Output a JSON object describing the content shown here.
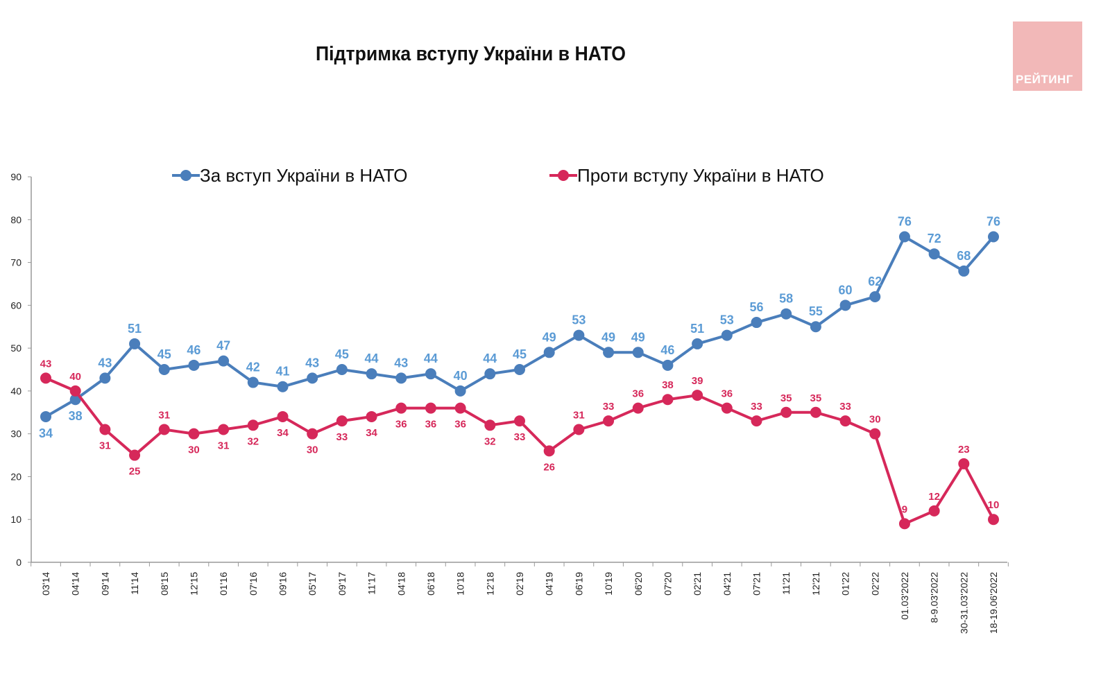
{
  "title": "Підтримка вступу України в НАТО",
  "logo_text": "РЕЙТИНГ",
  "chart_data": {
    "type": "line",
    "title": "Підтримка вступу України в НАТО",
    "xlabel": "",
    "ylabel": "",
    "ylim": [
      0,
      90
    ],
    "yticks": [
      0,
      10,
      20,
      30,
      40,
      50,
      60,
      70,
      80,
      90
    ],
    "grid": false,
    "legend_placement": "top",
    "categories": [
      "03'14",
      "04'14",
      "09'14",
      "11'14",
      "08'15",
      "12'15",
      "01'16",
      "07'16",
      "09'16",
      "05'17",
      "09'17",
      "11'17",
      "04'18",
      "06'18",
      "10'18",
      "12'18",
      "02'19",
      "04'19",
      "06'19",
      "10'19",
      "06'20",
      "07'20",
      "02'21",
      "04'21",
      "07'21",
      "11'21",
      "12'21",
      "01'22",
      "02'22",
      "01.03'2022",
      "8-9.03'2022",
      "30-31.03'2022",
      "18-19.06'2022"
    ],
    "series": [
      {
        "name": "За вступ України в НАТО",
        "color": "#4a7ebb",
        "label_color": "#5b9bd5",
        "values": [
          34,
          38,
          43,
          51,
          45,
          46,
          47,
          42,
          41,
          43,
          45,
          44,
          43,
          44,
          40,
          44,
          45,
          49,
          53,
          49,
          49,
          46,
          51,
          53,
          56,
          58,
          55,
          60,
          62,
          76,
          72,
          68,
          76
        ]
      },
      {
        "name": "Проти вступу України в НАТО",
        "color": "#d6285a",
        "label_color": "#d6285a",
        "values": [
          43,
          40,
          31,
          25,
          31,
          30,
          31,
          32,
          34,
          30,
          33,
          34,
          36,
          36,
          36,
          32,
          33,
          26,
          31,
          33,
          36,
          38,
          39,
          36,
          33,
          35,
          35,
          33,
          30,
          9,
          12,
          23,
          10
        ]
      }
    ]
  }
}
